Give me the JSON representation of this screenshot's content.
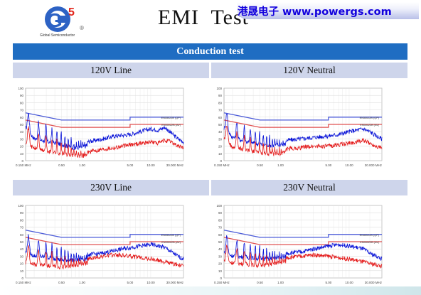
{
  "slide": {
    "title": "EMI  Test",
    "company": "港晟电子  www.powergs.com",
    "logo_mark": "G",
    "logo_sup": "5",
    "logo_reg": "®",
    "logo_caption": "Global Semiconductor",
    "section_title": "Conduction test"
  },
  "colors": {
    "header_bar": "#1f6dc2",
    "panel_label": "#ced5eb",
    "company_text": "#1200dd",
    "limit_qp": "#4a5ad8",
    "limit_av": "#e05050",
    "trace_qp": "#0a14d8",
    "trace_av": "#e41a1a"
  },
  "chart_data": [
    {
      "type": "line",
      "title": "120V Line",
      "xscale": "log",
      "xlim": [
        0.15,
        30
      ],
      "ylim": [
        0,
        100
      ],
      "x_ticks": [
        0.15,
        0.5,
        1,
        5,
        10,
        30
      ],
      "x_tick_labels": [
        "0.150 MHz",
        "0.50",
        "1.00",
        "5.00",
        "10.00",
        "30.000 MHz"
      ],
      "y_ticks": [
        0,
        10,
        20,
        30,
        40,
        50,
        60,
        70,
        80,
        90,
        100
      ],
      "legend": [
        "EN55022B (QP)",
        "EN55022B (AV)"
      ],
      "series": [
        {
          "name": "EN55022B (QP)",
          "x": [
            0.15,
            0.5,
            5,
            5,
            30
          ],
          "y": [
            66,
            56,
            56,
            60,
            60
          ]
        },
        {
          "name": "EN55022B (AV)",
          "x": [
            0.15,
            0.5,
            5,
            5,
            30
          ],
          "y": [
            56,
            46,
            46,
            50,
            50
          ]
        },
        {
          "x": [
            0.15,
            0.2,
            0.3,
            0.5,
            0.8,
            1.2,
            2,
            3,
            5,
            7,
            10,
            13,
            16,
            20,
            25,
            30
          ],
          "y": [
            50,
            36,
            32,
            28,
            22,
            26,
            30,
            34,
            36,
            40,
            44,
            42,
            46,
            38,
            30,
            26
          ]
        },
        {
          "x": [
            0.15,
            0.2,
            0.3,
            0.5,
            0.8,
            1.2,
            2,
            3,
            5,
            7,
            10,
            13,
            16,
            20,
            25,
            30
          ],
          "y": [
            30,
            22,
            18,
            15,
            12,
            12,
            16,
            18,
            22,
            24,
            26,
            24,
            28,
            26,
            20,
            18
          ]
        }
      ]
    },
    {
      "type": "line",
      "title": "120V Neutral",
      "xscale": "log",
      "xlim": [
        0.15,
        30
      ],
      "ylim": [
        0,
        100
      ],
      "x_ticks": [
        0.15,
        0.5,
        1,
        5,
        10,
        30
      ],
      "x_tick_labels": [
        "0.150 MHz",
        "0.50",
        "1.00",
        "5.00",
        "10.00",
        "30.000 MHz"
      ],
      "y_ticks": [
        0,
        10,
        20,
        30,
        40,
        50,
        60,
        70,
        80,
        90,
        100
      ],
      "legend": [
        "EN55022B (QP)",
        "EN55022B (AV)"
      ],
      "series": [
        {
          "name": "EN55022B (QP)",
          "x": [
            0.15,
            0.5,
            5,
            5,
            30
          ],
          "y": [
            66,
            56,
            56,
            60,
            60
          ]
        },
        {
          "name": "EN55022B (AV)",
          "x": [
            0.15,
            0.5,
            5,
            5,
            30
          ],
          "y": [
            56,
            46,
            46,
            50,
            50
          ]
        },
        {
          "x": [
            0.15,
            0.2,
            0.3,
            0.5,
            0.8,
            1.2,
            2,
            3,
            5,
            7,
            10,
            13,
            16,
            20,
            25,
            30
          ],
          "y": [
            50,
            38,
            32,
            28,
            26,
            28,
            30,
            32,
            34,
            36,
            40,
            42,
            44,
            40,
            34,
            30
          ]
        },
        {
          "x": [
            0.15,
            0.2,
            0.3,
            0.5,
            0.8,
            1.2,
            2,
            3,
            5,
            7,
            10,
            13,
            16,
            20,
            25,
            30
          ],
          "y": [
            34,
            24,
            20,
            16,
            14,
            16,
            18,
            20,
            20,
            22,
            24,
            26,
            28,
            24,
            20,
            18
          ]
        }
      ]
    },
    {
      "type": "line",
      "title": "230V Line",
      "xscale": "log",
      "xlim": [
        0.15,
        30
      ],
      "ylim": [
        0,
        100
      ],
      "x_ticks": [
        0.15,
        0.5,
        1,
        5,
        10,
        30
      ],
      "x_tick_labels": [
        "0.150 MHz",
        "0.50",
        "1.00",
        "5.00",
        "10.00",
        "30.000 MHz"
      ],
      "y_ticks": [
        0,
        10,
        20,
        30,
        40,
        50,
        60,
        70,
        80,
        90,
        100
      ],
      "legend": [
        "EN55022B (QP)",
        "EN55022B (AV)"
      ],
      "series": [
        {
          "name": "EN55022B (QP)",
          "x": [
            0.15,
            0.5,
            5,
            5,
            30
          ],
          "y": [
            66,
            56,
            56,
            60,
            60
          ]
        },
        {
          "name": "EN55022B (AV)",
          "x": [
            0.15,
            0.5,
            5,
            5,
            30
          ],
          "y": [
            56,
            46,
            46,
            50,
            50
          ]
        },
        {
          "x": [
            0.15,
            0.2,
            0.3,
            0.5,
            0.8,
            1.2,
            2,
            3,
            5,
            7,
            10,
            13,
            16,
            20,
            25,
            30
          ],
          "y": [
            40,
            36,
            34,
            30,
            30,
            32,
            34,
            38,
            42,
            44,
            46,
            44,
            42,
            36,
            30,
            26
          ]
        },
        {
          "x": [
            0.15,
            0.2,
            0.3,
            0.5,
            0.8,
            1.2,
            2,
            3,
            5,
            7,
            10,
            13,
            16,
            20,
            25,
            30
          ],
          "y": [
            26,
            24,
            22,
            20,
            22,
            26,
            30,
            32,
            30,
            28,
            26,
            24,
            22,
            20,
            18,
            16
          ]
        }
      ]
    },
    {
      "type": "line",
      "title": "230V Neutral",
      "xscale": "log",
      "xlim": [
        0.15,
        30
      ],
      "ylim": [
        0,
        100
      ],
      "x_ticks": [
        0.15,
        0.5,
        1,
        5,
        10,
        30
      ],
      "x_tick_labels": [
        "0.150 MHz",
        "0.50",
        "1.00",
        "5.00",
        "10.00",
        "30.000 MHz"
      ],
      "y_ticks": [
        0,
        10,
        20,
        30,
        40,
        50,
        60,
        70,
        80,
        90,
        100
      ],
      "legend": [
        "EN55022B (QP)",
        "EN55022B (AV)"
      ],
      "series": [
        {
          "name": "EN55022B (QP)",
          "x": [
            0.15,
            0.5,
            5,
            5,
            30
          ],
          "y": [
            66,
            56,
            56,
            60,
            60
          ]
        },
        {
          "name": "EN55022B (AV)",
          "x": [
            0.15,
            0.5,
            5,
            5,
            30
          ],
          "y": [
            56,
            46,
            46,
            50,
            50
          ]
        },
        {
          "x": [
            0.15,
            0.2,
            0.3,
            0.5,
            0.8,
            1.2,
            2,
            3,
            5,
            7,
            10,
            13,
            16,
            20,
            25,
            30
          ],
          "y": [
            40,
            36,
            34,
            32,
            32,
            34,
            36,
            40,
            44,
            46,
            44,
            42,
            40,
            34,
            30,
            26
          ]
        },
        {
          "x": [
            0.15,
            0.2,
            0.3,
            0.5,
            0.8,
            1.2,
            2,
            3,
            5,
            7,
            10,
            13,
            16,
            20,
            25,
            30
          ],
          "y": [
            28,
            26,
            24,
            22,
            24,
            28,
            30,
            32,
            30,
            28,
            26,
            24,
            22,
            20,
            18,
            16
          ]
        }
      ]
    }
  ]
}
